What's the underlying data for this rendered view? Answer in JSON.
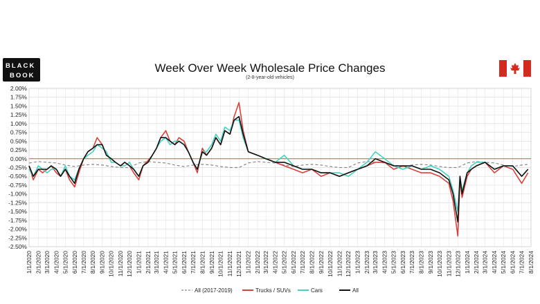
{
  "logo": {
    "line1": "BLACK",
    "line2": "BOOK"
  },
  "flag_colors": {
    "red": "#d52b1e",
    "white": "#ffffff"
  },
  "chart_data": {
    "type": "line",
    "title": "Week Over Week Wholesale Price Changes",
    "subtitle": "(2-8-year-old vehicles)",
    "xlabel": "",
    "ylabel": "",
    "ylim": [
      -0.025,
      0.02
    ],
    "y_ticks": [
      0.02,
      0.0175,
      0.015,
      0.0125,
      0.01,
      0.0075,
      0.005,
      0.0025,
      0,
      -0.0025,
      -0.005,
      -0.0075,
      -0.01,
      -0.0125,
      -0.015,
      -0.0175,
      -0.02,
      -0.0225,
      -0.025
    ],
    "y_tick_labels": [
      "2.00%",
      "1.75%",
      "1.50%",
      "1.25%",
      "1.00%",
      "0.75%",
      "0.50%",
      "0.25%",
      "0.00%",
      "-0.25%",
      "-0.50%",
      "-0.75%",
      "-1.00%",
      "-1.25%",
      "-1.50%",
      "-1.75%",
      "-2.00%",
      "-2.25%",
      "-2.50%"
    ],
    "x_tick_labels": [
      "1/1/2020",
      "2/1/2020",
      "3/1/2020",
      "4/1/2020",
      "5/1/2020",
      "6/1/2020",
      "7/1/2020",
      "8/1/2020",
      "9/1/2020",
      "10/1/2020",
      "11/1/2020",
      "12/1/2020",
      "1/1/2021",
      "2/1/2021",
      "3/1/2021",
      "4/1/2021",
      "5/1/2021",
      "6/1/2021",
      "7/1/2021",
      "8/1/2021",
      "9/1/2021",
      "10/1/2021",
      "11/1/2021",
      "12/1/2021",
      "1/1/2022",
      "2/1/2022",
      "3/1/2022",
      "4/1/2022",
      "5/1/2022",
      "6/1/2022",
      "7/1/2022",
      "8/1/2022",
      "9/1/2022",
      "10/1/2022",
      "11/1/2022",
      "12/1/2022",
      "1/1/2023",
      "2/1/2023",
      "3/1/2023",
      "4/1/2023",
      "5/1/2023",
      "6/1/2023",
      "7/1/2023",
      "8/1/2023",
      "9/1/2023",
      "10/1/2023",
      "11/1/2023",
      "12/1/2023",
      "1/1/2024",
      "2/1/2024",
      "3/1/2024",
      "4/1/2024",
      "5/1/2024",
      "6/1/2024",
      "7/1/2024",
      "8/1/2024"
    ],
    "grid": true,
    "zero_line_color": "#d9534f",
    "legend_position": "bottom",
    "series": [
      {
        "name": "All (2017-2019)",
        "color": "#888888",
        "style": "dashed",
        "x": [
          "2020-01-01",
          "2020-02-01",
          "2020-03-01",
          "2020-04-01",
          "2020-05-01",
          "2020-06-01",
          "2020-07-01",
          "2020-08-01",
          "2020-09-01",
          "2020-10-01",
          "2020-11-01",
          "2020-12-01",
          "2021-01-01",
          "2021-02-01",
          "2021-03-01",
          "2021-04-01",
          "2021-05-01",
          "2021-06-01",
          "2021-07-01",
          "2021-08-01",
          "2021-09-01",
          "2021-10-01",
          "2021-11-01",
          "2021-12-01",
          "2022-01-01",
          "2022-02-01",
          "2022-03-01",
          "2022-04-01",
          "2022-05-01",
          "2022-06-01",
          "2022-07-01",
          "2022-08-01",
          "2022-09-01",
          "2022-10-01",
          "2022-11-01",
          "2022-12-01",
          "2023-01-01",
          "2023-02-01",
          "2023-03-01",
          "2023-04-01",
          "2023-05-01",
          "2023-06-01",
          "2023-07-01",
          "2023-08-01",
          "2023-09-01",
          "2023-10-01",
          "2023-11-01",
          "2023-12-01",
          "2024-01-01",
          "2024-02-01",
          "2024-03-01",
          "2024-04-01",
          "2024-05-01",
          "2024-06-01",
          "2024-07-01",
          "2024-07-22"
        ],
        "y": [
          -0.0012,
          -0.0008,
          -0.001,
          -0.0012,
          -0.0018,
          -0.0022,
          -0.0018,
          -0.0016,
          -0.0018,
          -0.0022,
          -0.0025,
          -0.0025,
          -0.0012,
          -0.0008,
          -0.001,
          -0.0012,
          -0.0018,
          -0.0022,
          -0.0018,
          -0.0016,
          -0.0018,
          -0.0022,
          -0.0025,
          -0.0025,
          -0.0012,
          -0.0008,
          -0.001,
          -0.0012,
          -0.0018,
          -0.0022,
          -0.0018,
          -0.0016,
          -0.0018,
          -0.0022,
          -0.0025,
          -0.0025,
          -0.0012,
          -0.0008,
          -0.001,
          -0.0012,
          -0.0018,
          -0.0022,
          -0.0018,
          -0.0016,
          -0.0018,
          -0.0022,
          -0.0025,
          -0.0025,
          -0.0012,
          -0.0008,
          -0.001,
          -0.0012,
          -0.0018,
          -0.0022,
          -0.0018,
          -0.0016
        ]
      },
      {
        "name": "Trucks / SUVs",
        "color": "#d9403a",
        "style": "solid",
        "x": [
          "2020-01-01",
          "2020-01-15",
          "2020-02-01",
          "2020-02-15",
          "2020-03-01",
          "2020-03-15",
          "2020-04-01",
          "2020-04-15",
          "2020-05-01",
          "2020-05-15",
          "2020-06-01",
          "2020-06-15",
          "2020-07-01",
          "2020-07-15",
          "2020-08-01",
          "2020-08-15",
          "2020-09-01",
          "2020-09-15",
          "2020-10-01",
          "2020-10-15",
          "2020-11-01",
          "2020-11-15",
          "2020-12-01",
          "2020-12-15",
          "2021-01-01",
          "2021-01-15",
          "2021-02-01",
          "2021-02-15",
          "2021-03-01",
          "2021-03-15",
          "2021-04-01",
          "2021-04-15",
          "2021-05-01",
          "2021-05-15",
          "2021-06-01",
          "2021-06-15",
          "2021-07-01",
          "2021-07-15",
          "2021-08-01",
          "2021-08-15",
          "2021-09-01",
          "2021-09-15",
          "2021-10-01",
          "2021-10-15",
          "2021-11-01",
          "2021-11-15",
          "2021-12-01",
          "2021-12-15",
          "2022-01-01",
          "2022-02-01",
          "2022-03-01",
          "2022-04-01",
          "2022-05-01",
          "2022-06-01",
          "2022-07-01",
          "2022-08-01",
          "2022-09-01",
          "2022-10-01",
          "2022-11-01",
          "2022-12-01",
          "2023-01-01",
          "2023-02-01",
          "2023-03-01",
          "2023-04-01",
          "2023-05-01",
          "2023-06-01",
          "2023-07-01",
          "2023-08-01",
          "2023-09-01",
          "2023-10-01",
          "2023-11-01",
          "2023-11-15",
          "2023-12-01",
          "2023-12-08",
          "2023-12-15",
          "2024-01-01",
          "2024-01-15",
          "2024-02-01",
          "2024-03-01",
          "2024-04-01",
          "2024-05-01",
          "2024-06-01",
          "2024-07-01",
          "2024-07-22"
        ],
        "y": [
          -0.002,
          -0.006,
          -0.003,
          -0.004,
          -0.003,
          -0.002,
          -0.004,
          -0.005,
          -0.003,
          -0.006,
          -0.008,
          -0.004,
          0.0,
          0.002,
          0.003,
          0.006,
          0.004,
          0.001,
          0.0,
          -0.001,
          -0.002,
          -0.001,
          -0.002,
          -0.004,
          -0.006,
          -0.002,
          -0.0005,
          0.001,
          0.003,
          0.006,
          0.008,
          0.005,
          0.004,
          0.006,
          0.005,
          0.002,
          -0.001,
          -0.004,
          0.003,
          0.001,
          0.003,
          0.006,
          0.004,
          0.008,
          0.007,
          0.012,
          0.016,
          0.008,
          0.002,
          0.001,
          0.0,
          -0.001,
          -0.002,
          -0.003,
          -0.004,
          -0.003,
          -0.005,
          -0.004,
          -0.005,
          -0.004,
          -0.003,
          -0.002,
          -0.001,
          -0.001,
          -0.003,
          -0.002,
          -0.003,
          -0.004,
          -0.004,
          -0.005,
          -0.007,
          -0.012,
          -0.022,
          -0.006,
          -0.011,
          -0.005,
          -0.003,
          -0.002,
          -0.001,
          -0.004,
          -0.002,
          -0.003,
          -0.007,
          -0.004
        ]
      },
      {
        "name": "Cars",
        "color": "#45d1c0",
        "style": "solid",
        "x": [
          "2020-01-01",
          "2020-01-15",
          "2020-02-01",
          "2020-02-15",
          "2020-03-01",
          "2020-03-15",
          "2020-04-01",
          "2020-04-15",
          "2020-05-01",
          "2020-05-15",
          "2020-06-01",
          "2020-06-15",
          "2020-07-01",
          "2020-07-15",
          "2020-08-01",
          "2020-08-15",
          "2020-09-01",
          "2020-09-15",
          "2020-10-01",
          "2020-10-15",
          "2020-11-01",
          "2020-11-15",
          "2020-12-01",
          "2020-12-15",
          "2021-01-01",
          "2021-01-15",
          "2021-02-01",
          "2021-02-15",
          "2021-03-01",
          "2021-03-15",
          "2021-04-01",
          "2021-04-15",
          "2021-05-01",
          "2021-05-15",
          "2021-06-01",
          "2021-06-15",
          "2021-07-01",
          "2021-07-15",
          "2021-08-01",
          "2021-08-15",
          "2021-09-01",
          "2021-09-15",
          "2021-10-01",
          "2021-10-15",
          "2021-11-01",
          "2021-11-15",
          "2021-12-01",
          "2021-12-15",
          "2022-01-01",
          "2022-02-01",
          "2022-03-01",
          "2022-04-01",
          "2022-05-01",
          "2022-06-01",
          "2022-07-01",
          "2022-08-01",
          "2022-09-01",
          "2022-10-01",
          "2022-11-01",
          "2022-12-01",
          "2023-01-01",
          "2023-02-01",
          "2023-03-01",
          "2023-04-01",
          "2023-05-01",
          "2023-06-01",
          "2023-07-01",
          "2023-08-01",
          "2023-09-01",
          "2023-10-01",
          "2023-11-01",
          "2023-11-15",
          "2023-12-01",
          "2023-12-08",
          "2023-12-15",
          "2024-01-01",
          "2024-01-15",
          "2024-02-01",
          "2024-03-01",
          "2024-04-01",
          "2024-05-01",
          "2024-06-01",
          "2024-07-01",
          "2024-07-22"
        ],
        "y": [
          -0.003,
          -0.005,
          -0.002,
          -0.003,
          -0.004,
          -0.003,
          -0.003,
          -0.005,
          -0.002,
          -0.005,
          -0.006,
          -0.003,
          0.0,
          0.001,
          0.002,
          0.004,
          0.003,
          0.002,
          -0.001,
          -0.001,
          -0.002,
          -0.002,
          -0.001,
          -0.003,
          -0.005,
          -0.002,
          -0.001,
          0.001,
          0.003,
          0.005,
          0.006,
          0.004,
          0.005,
          0.005,
          0.004,
          0.002,
          -0.001,
          -0.003,
          0.002,
          0.002,
          0.004,
          0.007,
          0.005,
          0.009,
          0.008,
          0.011,
          0.011,
          0.006,
          0.002,
          0.001,
          0.0,
          -0.001,
          0.001,
          -0.002,
          -0.003,
          -0.003,
          -0.004,
          -0.004,
          -0.004,
          -0.005,
          -0.003,
          -0.001,
          0.002,
          0.0,
          -0.002,
          -0.003,
          -0.002,
          -0.003,
          -0.002,
          -0.003,
          -0.005,
          -0.009,
          -0.015,
          -0.005,
          -0.009,
          -0.004,
          -0.002,
          -0.001,
          -0.001,
          -0.003,
          -0.002,
          -0.002,
          -0.005,
          -0.003
        ]
      },
      {
        "name": "All",
        "color": "#111111",
        "style": "solid",
        "x": [
          "2020-01-01",
          "2020-01-15",
          "2020-02-01",
          "2020-02-15",
          "2020-03-01",
          "2020-03-15",
          "2020-04-01",
          "2020-04-15",
          "2020-05-01",
          "2020-05-15",
          "2020-06-01",
          "2020-06-15",
          "2020-07-01",
          "2020-07-15",
          "2020-08-01",
          "2020-08-15",
          "2020-09-01",
          "2020-09-15",
          "2020-10-01",
          "2020-10-15",
          "2020-11-01",
          "2020-11-15",
          "2020-12-01",
          "2020-12-15",
          "2021-01-01",
          "2021-01-15",
          "2021-02-01",
          "2021-02-15",
          "2021-03-01",
          "2021-03-15",
          "2021-04-01",
          "2021-04-15",
          "2021-05-01",
          "2021-05-15",
          "2021-06-01",
          "2021-06-15",
          "2021-07-01",
          "2021-07-15",
          "2021-08-01",
          "2021-08-15",
          "2021-09-01",
          "2021-09-15",
          "2021-10-01",
          "2021-10-15",
          "2021-11-01",
          "2021-11-15",
          "2021-12-01",
          "2021-12-15",
          "2022-01-01",
          "2022-02-01",
          "2022-03-01",
          "2022-04-01",
          "2022-05-01",
          "2022-06-01",
          "2022-07-01",
          "2022-08-01",
          "2022-09-01",
          "2022-10-01",
          "2022-11-01",
          "2022-12-01",
          "2023-01-01",
          "2023-02-01",
          "2023-03-01",
          "2023-04-01",
          "2023-05-01",
          "2023-06-01",
          "2023-07-01",
          "2023-08-01",
          "2023-09-01",
          "2023-10-01",
          "2023-11-01",
          "2023-11-15",
          "2023-12-01",
          "2023-12-08",
          "2023-12-15",
          "2024-01-01",
          "2024-01-15",
          "2024-02-01",
          "2024-03-01",
          "2024-04-01",
          "2024-05-01",
          "2024-06-01",
          "2024-07-01",
          "2024-07-22"
        ],
        "y": [
          -0.002,
          -0.005,
          -0.003,
          -0.003,
          -0.003,
          -0.002,
          -0.003,
          -0.005,
          -0.003,
          -0.005,
          -0.007,
          -0.003,
          0.0,
          0.002,
          0.003,
          0.004,
          0.004,
          0.001,
          0.0,
          -0.001,
          -0.002,
          -0.001,
          -0.002,
          -0.003,
          -0.005,
          -0.002,
          -0.001,
          0.001,
          0.003,
          0.006,
          0.006,
          0.005,
          0.004,
          0.005,
          0.004,
          0.002,
          -0.001,
          -0.003,
          0.002,
          0.001,
          0.003,
          0.006,
          0.004,
          0.008,
          0.007,
          0.011,
          0.012,
          0.007,
          0.002,
          0.001,
          0.0,
          -0.001,
          -0.001,
          -0.002,
          -0.003,
          -0.003,
          -0.004,
          -0.004,
          -0.005,
          -0.004,
          -0.003,
          -0.002,
          0.0,
          -0.001,
          -0.002,
          -0.002,
          -0.002,
          -0.003,
          -0.003,
          -0.004,
          -0.006,
          -0.01,
          -0.018,
          -0.005,
          -0.01,
          -0.004,
          -0.003,
          -0.002,
          -0.001,
          -0.003,
          -0.002,
          -0.002,
          -0.005,
          -0.003
        ]
      }
    ]
  }
}
